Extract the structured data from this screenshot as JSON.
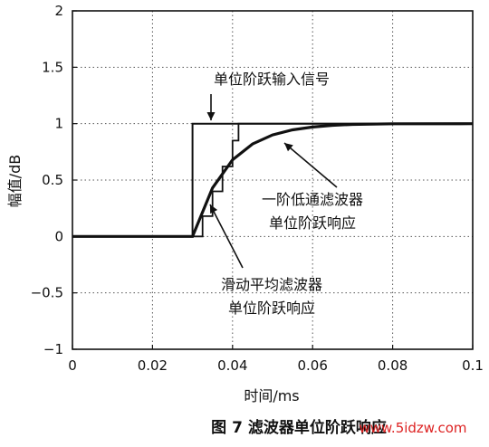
{
  "chart_data": {
    "type": "line",
    "title": "",
    "xlabel": "时间/ms",
    "ylabel": "幅值/dB",
    "xlim": [
      0,
      0.1
    ],
    "ylim": [
      -1,
      2
    ],
    "x_ticks": [
      "0",
      "0.02",
      "0.04",
      "0.06",
      "0.08",
      "0.1"
    ],
    "y_ticks": [
      "−1",
      "−0.5",
      "0",
      "0.5",
      "1",
      "1.5",
      "2"
    ],
    "grid": true,
    "series": [
      {
        "name": "单位阶跃输入信号",
        "x": [
          0,
          0.03,
          0.03,
          0.1
        ],
        "y": [
          0,
          0,
          1,
          1
        ]
      },
      {
        "name": "一阶低通滤波器单位阶跃响应",
        "x": [
          0,
          0.03,
          0.035,
          0.04,
          0.045,
          0.05,
          0.055,
          0.06,
          0.065,
          0.07,
          0.08,
          0.1
        ],
        "y": [
          0,
          0,
          0.43,
          0.68,
          0.82,
          0.9,
          0.945,
          0.97,
          0.985,
          0.993,
          0.999,
          1
        ]
      },
      {
        "name": "滑动平均滤波器单位阶跃响应",
        "x": [
          0,
          0.03,
          0.0325,
          0.035,
          0.0375,
          0.04,
          0.0415,
          0.1
        ],
        "y": [
          0,
          0,
          0.18,
          0.4,
          0.62,
          0.85,
          1,
          1
        ]
      }
    ],
    "annotations": [
      {
        "text": "单位阶跃输入信号"
      },
      {
        "lines": [
          "一阶低通滤波器",
          "单位阶跃响应"
        ]
      },
      {
        "lines": [
          "滑动平均滤波器",
          "单位阶跃响应"
        ]
      }
    ]
  },
  "caption": "图 7  滤波器单位阶跃响应",
  "watermark": "www.5idzw.com"
}
